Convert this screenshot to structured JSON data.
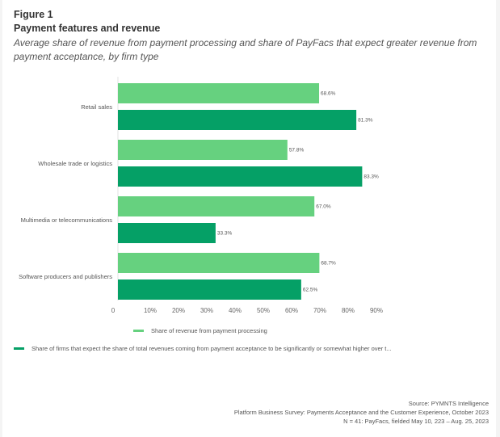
{
  "figure_label": "Figure 1",
  "title": "Payment features and revenue",
  "subtitle": "Average share of revenue from payment processing and share of PayFacs that expect greater revenue from payment acceptance, by firm type",
  "chart_data": {
    "type": "bar",
    "orientation": "horizontal",
    "title": "Payment features and revenue",
    "subtitle": "Average share of revenue from payment processing and share of PayFacs that expect greater revenue from payment acceptance, by firm type",
    "categories": [
      "Retail sales",
      "Wholesale trade or logistics",
      "Multimedia or telecommunications",
      "Software producers and publishers"
    ],
    "series": [
      {
        "name": "Share of revenue from payment processing",
        "color": "#66d17f",
        "values": [
          68.6,
          57.8,
          67.0,
          68.7
        ],
        "labels": [
          "68.6%",
          "57.8%",
          "67.0%",
          "68.7%"
        ]
      },
      {
        "name": "Share of firms that expect the share of total revenues coming from payment acceptance to be significantly or somewhat higher over t...",
        "color": "#05a066",
        "values": [
          81.3,
          83.3,
          33.3,
          62.5
        ],
        "labels": [
          "81.3%",
          "83.3%",
          "33.3%",
          "62.5%"
        ]
      }
    ],
    "xlim": [
      0,
      90
    ],
    "xticks": [
      0,
      10,
      20,
      30,
      40,
      50,
      60,
      70,
      80,
      90
    ],
    "xtick_labels": [
      "0",
      "10%",
      "20%",
      "30%",
      "40%",
      "50%",
      "60%",
      "70%",
      "80%",
      "90%"
    ],
    "xlabel": "",
    "ylabel": "",
    "grid": false,
    "legend_position": "bottom"
  },
  "footer": {
    "source": "Source: PYMNTS Intelligence",
    "survey": "Platform Business Survey: Payments Acceptance and the Customer Experience, October 2023",
    "sample": "N = 41: PayFacs, fielded May 10, 223 – Aug. 25, 2023"
  }
}
